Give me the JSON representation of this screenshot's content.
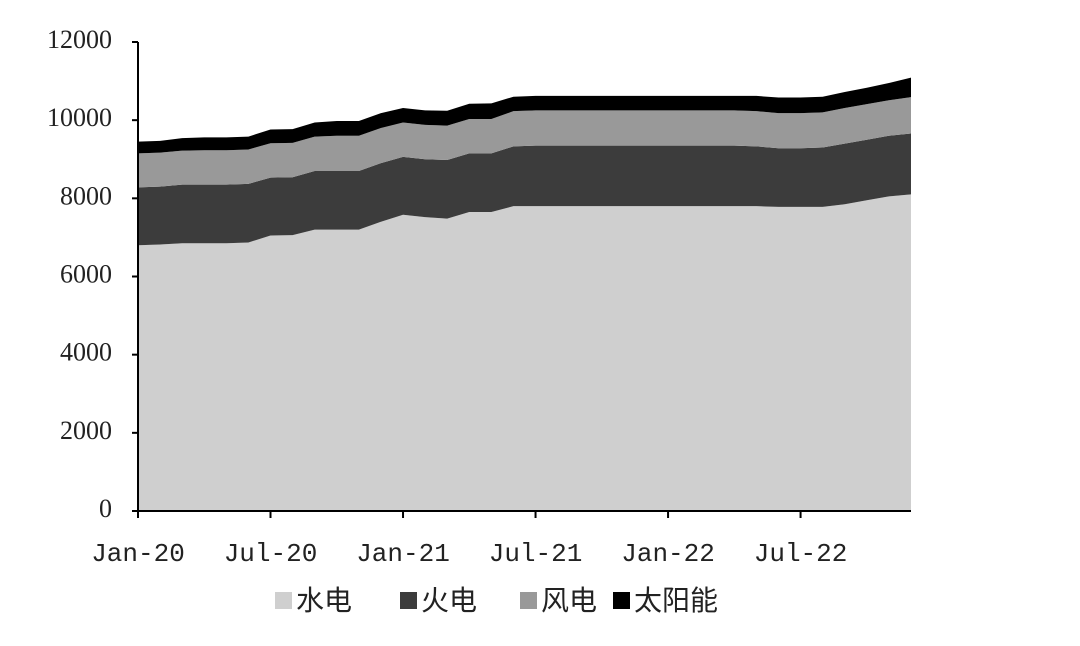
{
  "chart_data": {
    "type": "stacked_area",
    "categories": [
      "Jan-20",
      null,
      null,
      null,
      null,
      null,
      "Jul-20",
      null,
      null,
      null,
      null,
      null,
      "Jan-21",
      null,
      null,
      null,
      null,
      null,
      "Jul-21",
      null,
      null,
      null,
      null,
      null,
      "Jan-22",
      null,
      null,
      null,
      null,
      null,
      "Jul-22",
      null,
      null,
      null,
      null,
      null
    ],
    "series": [
      {
        "name": "水电",
        "color": "#cfcfcf",
        "values": [
          6800,
          6820,
          6850,
          6850,
          6850,
          6870,
          7050,
          7060,
          7200,
          7200,
          7200,
          7400,
          7580,
          7520,
          7480,
          7650,
          7650,
          7800,
          7800,
          7800,
          7800,
          7800,
          7800,
          7800,
          7800,
          7800,
          7800,
          7800,
          7800,
          7780,
          7780,
          7780,
          7850,
          7950,
          8050,
          8100
        ]
      },
      {
        "name": "火电",
        "color": "#3c3c3c",
        "values": [
          1480,
          1480,
          1500,
          1500,
          1500,
          1500,
          1480,
          1480,
          1500,
          1500,
          1500,
          1500,
          1480,
          1480,
          1500,
          1500,
          1500,
          1530,
          1550,
          1550,
          1550,
          1550,
          1550,
          1550,
          1550,
          1550,
          1550,
          1550,
          1530,
          1500,
          1500,
          1520,
          1550,
          1550,
          1550,
          1560
        ]
      },
      {
        "name": "风电",
        "color": "#999999",
        "values": [
          870,
          870,
          870,
          880,
          880,
          880,
          880,
          880,
          880,
          900,
          900,
          900,
          880,
          880,
          880,
          880,
          880,
          900,
          900,
          900,
          900,
          900,
          900,
          900,
          900,
          900,
          900,
          900,
          900,
          900,
          900,
          900,
          910,
          910,
          910,
          930
        ]
      },
      {
        "name": "太阳能",
        "color": "#000000",
        "values": [
          300,
          300,
          320,
          330,
          330,
          330,
          350,
          350,
          360,
          380,
          380,
          380,
          370,
          370,
          380,
          390,
          400,
          370,
          370,
          370,
          370,
          370,
          370,
          370,
          370,
          370,
          370,
          370,
          390,
          400,
          400,
          400,
          410,
          420,
          440,
          500
        ]
      }
    ],
    "ylim": [
      0,
      12000
    ],
    "yticks": [
      0,
      2000,
      4000,
      6000,
      8000,
      10000,
      12000
    ]
  }
}
